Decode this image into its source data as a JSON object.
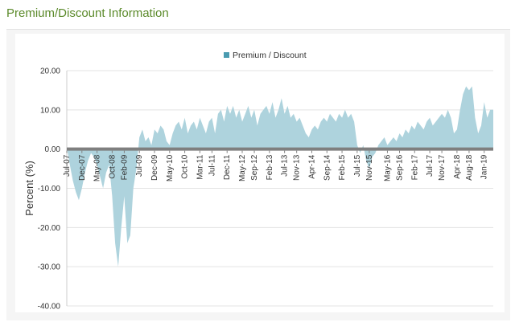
{
  "section": {
    "title": "Premium/Discount Information"
  },
  "chart_data": {
    "type": "area",
    "ylabel": "Percent (%)",
    "ylim": [
      -40,
      20
    ],
    "y_ticks": [
      "20.00",
      "10.00",
      "0.00",
      "-10.00",
      "-20.00",
      "-30.00",
      "-40.00"
    ],
    "x_range": [
      "2007-07",
      "2019-04"
    ],
    "x_ticks": [
      "Jul-07",
      "Dec-07",
      "May-08",
      "Oct-08",
      "Feb-09",
      "Jul-09",
      "Dec-09",
      "May-10",
      "Oct-10",
      "Mar-11",
      "Jul-11",
      "Dec-11",
      "May-12",
      "Sep-12",
      "Feb-13",
      "Jul-13",
      "Nov-13",
      "Apr-14",
      "Sep-14",
      "Feb-15",
      "Jul-15",
      "Nov-15",
      "May-16",
      "Sep-16",
      "Feb-17",
      "Jul-17",
      "Nov-17",
      "Apr-18",
      "Aug-18",
      "Jan-19"
    ],
    "grid": true,
    "legend_position": "top-center",
    "series": [
      {
        "name": "Premium / Discount",
        "color": "#4a9bb0",
        "fill": "#aed3dd",
        "points": [
          [
            "2007-07",
            0.5
          ],
          [
            "2007-08",
            -4
          ],
          [
            "2007-09",
            -8
          ],
          [
            "2007-10",
            -11
          ],
          [
            "2007-11",
            -13
          ],
          [
            "2007-12",
            -10
          ],
          [
            "2008-01",
            -6
          ],
          [
            "2008-02",
            -3
          ],
          [
            "2008-03",
            -1
          ],
          [
            "2008-04",
            -2
          ],
          [
            "2008-05",
            -4
          ],
          [
            "2008-06",
            -7
          ],
          [
            "2008-07",
            -10
          ],
          [
            "2008-08",
            -6
          ],
          [
            "2008-09",
            -4
          ],
          [
            "2008-10",
            -12
          ],
          [
            "2008-11",
            -24
          ],
          [
            "2008-12",
            -30
          ],
          [
            "2009-01",
            -20
          ],
          [
            "2009-02",
            -12
          ],
          [
            "2009-03",
            -24
          ],
          [
            "2009-04",
            -22
          ],
          [
            "2009-05",
            -10
          ],
          [
            "2009-06",
            -5
          ],
          [
            "2009-07",
            3
          ],
          [
            "2009-08",
            5
          ],
          [
            "2009-09",
            2
          ],
          [
            "2009-10",
            3
          ],
          [
            "2009-11",
            1
          ],
          [
            "2009-12",
            5
          ],
          [
            "2010-01",
            4
          ],
          [
            "2010-02",
            6
          ],
          [
            "2010-03",
            5
          ],
          [
            "2010-04",
            2
          ],
          [
            "2010-05",
            1
          ],
          [
            "2010-06",
            4
          ],
          [
            "2010-07",
            6
          ],
          [
            "2010-08",
            7
          ],
          [
            "2010-09",
            5
          ],
          [
            "2010-10",
            8
          ],
          [
            "2010-11",
            4
          ],
          [
            "2010-12",
            6
          ],
          [
            "2011-01",
            7
          ],
          [
            "2011-02",
            5
          ],
          [
            "2011-03",
            8
          ],
          [
            "2011-04",
            6
          ],
          [
            "2011-05",
            4
          ],
          [
            "2011-06",
            7
          ],
          [
            "2011-07",
            8
          ],
          [
            "2011-08",
            4
          ],
          [
            "2011-09",
            9
          ],
          [
            "2011-10",
            10
          ],
          [
            "2011-11",
            7
          ],
          [
            "2011-12",
            11
          ],
          [
            "2012-01",
            9
          ],
          [
            "2012-02",
            11
          ],
          [
            "2012-03",
            8
          ],
          [
            "2012-04",
            10
          ],
          [
            "2012-05",
            7
          ],
          [
            "2012-06",
            9
          ],
          [
            "2012-07",
            11
          ],
          [
            "2012-08",
            8
          ],
          [
            "2012-09",
            10
          ],
          [
            "2012-10",
            6
          ],
          [
            "2012-11",
            9
          ],
          [
            "2012-12",
            10
          ],
          [
            "2013-01",
            11
          ],
          [
            "2013-02",
            9
          ],
          [
            "2013-03",
            12
          ],
          [
            "2013-04",
            8
          ],
          [
            "2013-05",
            10
          ],
          [
            "2013-06",
            13
          ],
          [
            "2013-07",
            9
          ],
          [
            "2013-08",
            11
          ],
          [
            "2013-09",
            8
          ],
          [
            "2013-10",
            9
          ],
          [
            "2013-11",
            7
          ],
          [
            "2013-12",
            8
          ],
          [
            "2014-01",
            6
          ],
          [
            "2014-02",
            4
          ],
          [
            "2014-03",
            3
          ],
          [
            "2014-04",
            5
          ],
          [
            "2014-05",
            6
          ],
          [
            "2014-06",
            5
          ],
          [
            "2014-07",
            7
          ],
          [
            "2014-08",
            8
          ],
          [
            "2014-09",
            7
          ],
          [
            "2014-10",
            9
          ],
          [
            "2014-11",
            8
          ],
          [
            "2014-12",
            7
          ],
          [
            "2015-01",
            9
          ],
          [
            "2015-02",
            8
          ],
          [
            "2015-03",
            10
          ],
          [
            "2015-04",
            8
          ],
          [
            "2015-05",
            9
          ],
          [
            "2015-06",
            7
          ],
          [
            "2015-07",
            1
          ],
          [
            "2015-08",
            -1
          ],
          [
            "2015-09",
            1
          ],
          [
            "2015-10",
            -3
          ],
          [
            "2015-11",
            -5
          ],
          [
            "2015-12",
            -2
          ],
          [
            "2016-01",
            -1
          ],
          [
            "2016-02",
            1
          ],
          [
            "2016-03",
            2
          ],
          [
            "2016-04",
            3
          ],
          [
            "2016-05",
            1
          ],
          [
            "2016-06",
            2
          ],
          [
            "2016-07",
            3
          ],
          [
            "2016-08",
            2
          ],
          [
            "2016-09",
            4
          ],
          [
            "2016-10",
            3
          ],
          [
            "2016-11",
            5
          ],
          [
            "2016-12",
            4
          ],
          [
            "2017-01",
            6
          ],
          [
            "2017-02",
            5
          ],
          [
            "2017-03",
            7
          ],
          [
            "2017-04",
            6
          ],
          [
            "2017-05",
            5
          ],
          [
            "2017-06",
            7
          ],
          [
            "2017-07",
            8
          ],
          [
            "2017-08",
            6
          ],
          [
            "2017-09",
            7
          ],
          [
            "2017-10",
            8
          ],
          [
            "2017-11",
            9
          ],
          [
            "2017-12",
            8
          ],
          [
            "2018-01",
            10
          ],
          [
            "2018-02",
            8
          ],
          [
            "2018-03",
            4
          ],
          [
            "2018-04",
            5
          ],
          [
            "2018-05",
            10
          ],
          [
            "2018-06",
            14
          ],
          [
            "2018-07",
            16
          ],
          [
            "2018-08",
            15
          ],
          [
            "2018-09",
            16
          ],
          [
            "2018-10",
            8
          ],
          [
            "2018-11",
            4
          ],
          [
            "2018-12",
            6
          ],
          [
            "2019-01",
            12
          ],
          [
            "2019-02",
            8
          ],
          [
            "2019-03",
            10
          ],
          [
            "2019-04",
            10
          ]
        ]
      }
    ]
  }
}
